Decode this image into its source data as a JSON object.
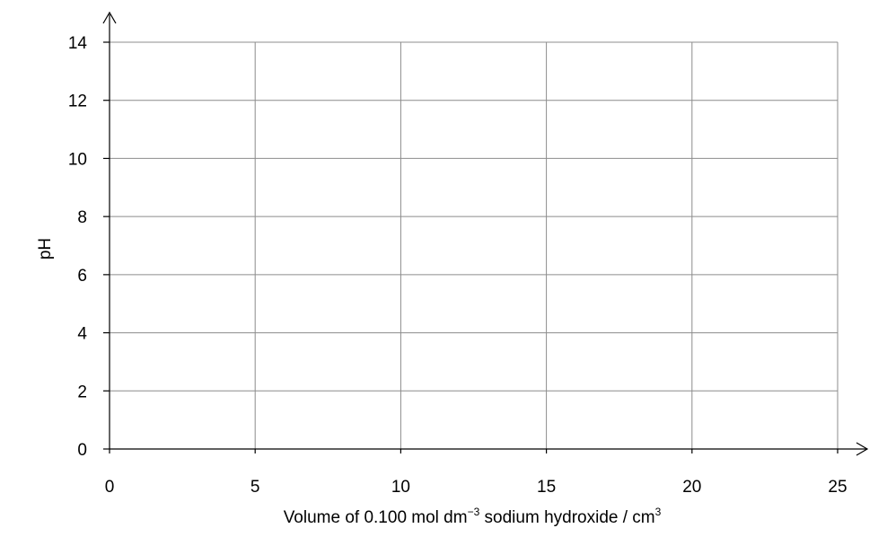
{
  "chart_data": {
    "type": "line",
    "title": "",
    "xlabel": {
      "prefix": "Volume of 0.100 mol dm",
      "sup1": "−3",
      "middle": " sodium hydroxide / cm",
      "sup2": "3"
    },
    "ylabel": "pH",
    "xlim": [
      0,
      25
    ],
    "ylim": [
      0,
      14
    ],
    "x_ticks": [
      0,
      5,
      10,
      15,
      20,
      25
    ],
    "y_ticks": [
      0,
      2,
      4,
      6,
      8,
      10,
      12,
      14
    ],
    "grid": true,
    "series": [],
    "colors": {
      "grid": "#8c8c8c",
      "axis": "#000000"
    }
  }
}
